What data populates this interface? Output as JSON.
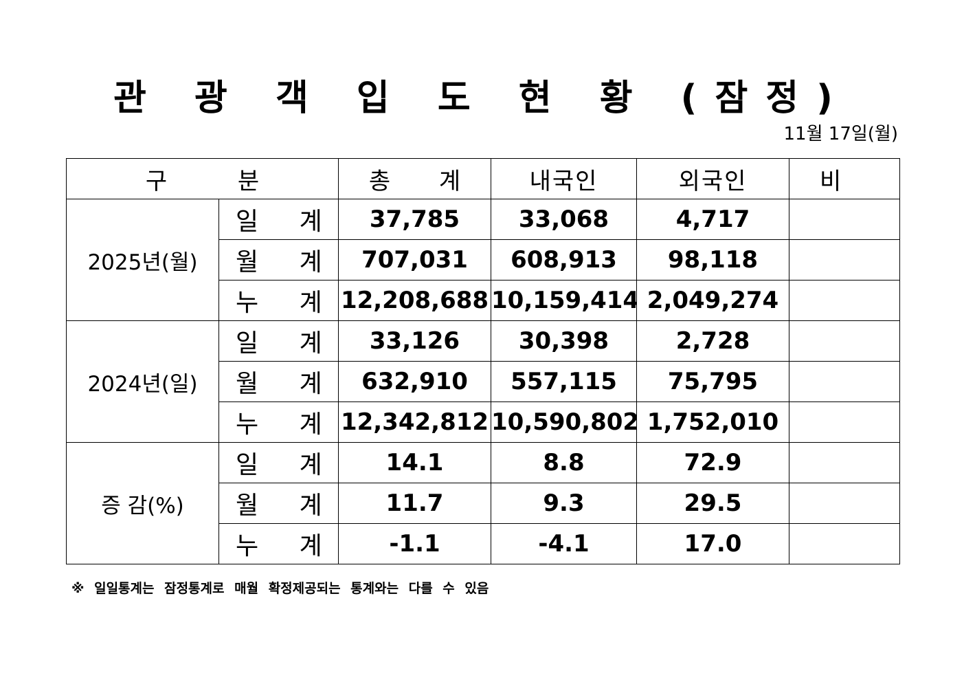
{
  "title": "관 광 객 입 도 현 황 (잠정)",
  "date": "11월  17일(월)",
  "headers": {
    "category": "구 분",
    "total": "총 계",
    "domestic": "내국인",
    "foreign": "외국인",
    "remarks": "비 고"
  },
  "groups": [
    {
      "label": "2025년(월)",
      "rows": [
        {
          "label": "일 계",
          "total": "37,785",
          "domestic": "33,068",
          "foreign": "4,717",
          "remarks": ""
        },
        {
          "label": "월 계",
          "total": "707,031",
          "domestic": "608,913",
          "foreign": "98,118",
          "remarks": ""
        },
        {
          "label": "누 계",
          "total": "12,208,688",
          "domestic": "10,159,414",
          "foreign": "2,049,274",
          "remarks": ""
        }
      ]
    },
    {
      "label": "2024년(일)",
      "rows": [
        {
          "label": "일 계",
          "total": "33,126",
          "domestic": "30,398",
          "foreign": "2,728",
          "remarks": ""
        },
        {
          "label": "월 계",
          "total": "632,910",
          "domestic": "557,115",
          "foreign": "75,795",
          "remarks": ""
        },
        {
          "label": "누 계",
          "total": "12,342,812",
          "domestic": "10,590,802",
          "foreign": "1,752,010",
          "remarks": ""
        }
      ]
    },
    {
      "label": "증 감(%)",
      "rows": [
        {
          "label": "일 계",
          "total": "14.1",
          "domestic": "8.8",
          "foreign": "72.9",
          "remarks": ""
        },
        {
          "label": "월 계",
          "total": "11.7",
          "domestic": "9.3",
          "foreign": "29.5",
          "remarks": ""
        },
        {
          "label": "누 계",
          "total": "-1.1",
          "domestic": "-4.1",
          "foreign": "17.0",
          "remarks": ""
        }
      ]
    }
  ],
  "footnote": "※ 일일통계는 잠정통계로 매월 확정제공되는 통계와는 다를 수 있음"
}
